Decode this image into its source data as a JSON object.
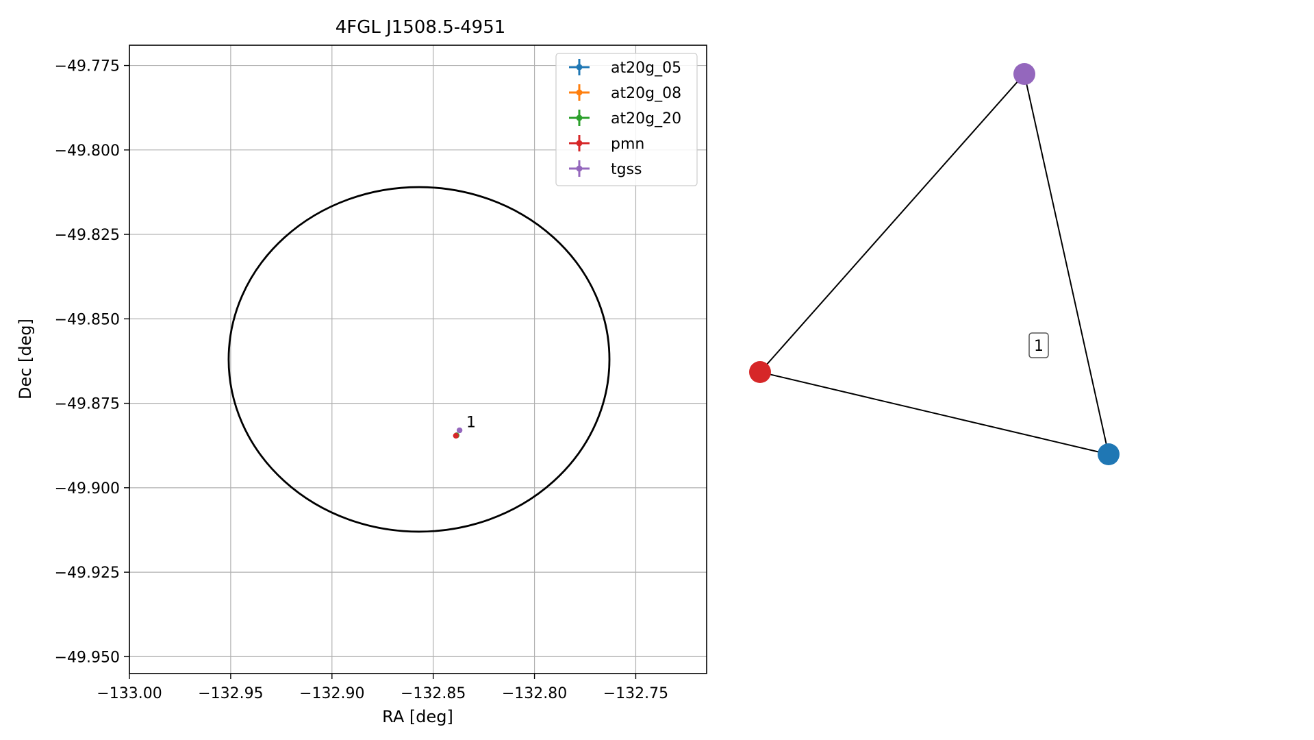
{
  "chart_data": [
    {
      "type": "scatter",
      "title": "4FGL J1508.5-4951",
      "xlabel": "RA [deg]",
      "ylabel": "Dec [deg]",
      "xlim": [
        -133.0,
        -132.715
      ],
      "ylim": [
        -49.955,
        -49.769
      ],
      "xticks": [
        -133.0,
        -132.95,
        -132.9,
        -132.85,
        -132.8,
        -132.75
      ],
      "xtick_labels": [
        "−133.00",
        "−132.95",
        "−132.90",
        "−132.85",
        "−132.80",
        "−132.75"
      ],
      "yticks": [
        -49.775,
        -49.8,
        -49.825,
        -49.85,
        -49.875,
        -49.9,
        -49.925,
        -49.95
      ],
      "ytick_labels": [
        "−49.775",
        "−49.800",
        "−49.825",
        "−49.850",
        "−49.875",
        "−49.900",
        "−49.925",
        "−49.950"
      ],
      "grid": true,
      "legend_position": "top-right",
      "ellipse": {
        "center_ra": -132.857,
        "center_dec": -49.862,
        "ra_half_width": 0.094,
        "dec_half_height": 0.051,
        "color": "#000000"
      },
      "series": [
        {
          "name": "at20g_05",
          "color": "#1f77b4",
          "points": [
            {
              "ra": -132.8385,
              "dec": -49.8845
            }
          ]
        },
        {
          "name": "at20g_08",
          "color": "#ff7f0e",
          "points": [
            {
              "ra": -132.8385,
              "dec": -49.8845
            }
          ]
        },
        {
          "name": "at20g_20",
          "color": "#2ca02c",
          "points": [
            {
              "ra": -132.8385,
              "dec": -49.8845
            }
          ]
        },
        {
          "name": "pmn",
          "color": "#d62728",
          "points": [
            {
              "ra": -132.8388,
              "dec": -49.8846
            }
          ]
        },
        {
          "name": "tgss",
          "color": "#9467bd",
          "points": [
            {
              "ra": -132.837,
              "dec": -49.883
            }
          ]
        }
      ],
      "annotations": [
        {
          "text": "1",
          "ra": -132.835,
          "dec": -49.8825
        }
      ]
    },
    {
      "type": "network",
      "nodes": [
        {
          "id": "tgss",
          "color": "#9467bd"
        },
        {
          "id": "pmn",
          "color": "#d62728"
        },
        {
          "id": "at20g",
          "color": "#1f77b4"
        }
      ],
      "edges": [
        [
          "tgss",
          "pmn"
        ],
        [
          "tgss",
          "at20g"
        ],
        [
          "pmn",
          "at20g"
        ]
      ],
      "group_label": "1"
    }
  ]
}
